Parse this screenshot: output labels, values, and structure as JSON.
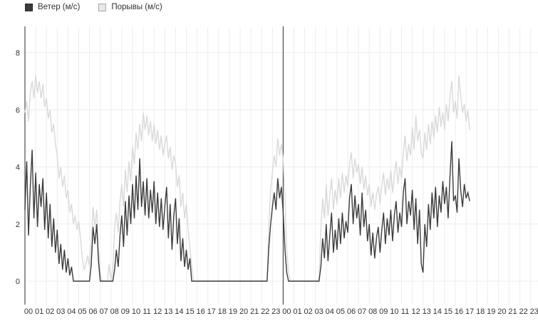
{
  "legend": [
    {
      "label": "Ветер (м/с)",
      "fill": "#3c3c3c",
      "border": "#2a2a2a"
    },
    {
      "label": "Порывы (м/с)",
      "fill": "#e8e8e8",
      "border": "#a8a8a8"
    }
  ],
  "chart_data": {
    "type": "line",
    "title": "",
    "xlabel": "",
    "ylabel": "",
    "x_unit": "hour of day, two consecutive days",
    "x_interval_minutes": 10,
    "x_tick_labels": [
      "00",
      "01",
      "02",
      "03",
      "04",
      "05",
      "06",
      "07",
      "08",
      "09",
      "10",
      "11",
      "12",
      "13",
      "14",
      "15",
      "16",
      "17",
      "18",
      "19",
      "20",
      "21",
      "22",
      "23",
      "00",
      "01",
      "02",
      "03",
      "04",
      "05",
      "06",
      "07",
      "08",
      "09",
      "10",
      "11",
      "12",
      "13",
      "14",
      "15",
      "16",
      "17",
      "18",
      "19",
      "20",
      "21",
      "22",
      "23"
    ],
    "y_ticks": [
      0,
      2,
      4,
      6,
      8
    ],
    "ylim": [
      0,
      9.2
    ],
    "grid": "on",
    "legend_position": "top-left",
    "day_separator_at_hour": 24,
    "colors": {
      "grid": "#ececec",
      "axis": "#4d4d4d",
      "tick_text": "#333333"
    },
    "series": [
      {
        "name": "Ветер (м/с)",
        "color": "#3c3c3c",
        "values": [
          2.5,
          4.2,
          1.6,
          3.3,
          4.6,
          2.2,
          3.8,
          1.9,
          3.4,
          2.6,
          3.6,
          1.8,
          3.1,
          1.5,
          2.7,
          1.2,
          2.2,
          1.0,
          1.8,
          0.6,
          1.3,
          0.4,
          1.1,
          0.3,
          0.8,
          0.2,
          0.5,
          0,
          0,
          0,
          0,
          0,
          0,
          0,
          0,
          0,
          0,
          0.6,
          1.9,
          1.3,
          2.0,
          0.7,
          0,
          0,
          0,
          0,
          0,
          0,
          0,
          0,
          0.4,
          1.1,
          0.5,
          1.6,
          2.3,
          1.2,
          2.8,
          1.6,
          3.0,
          2.0,
          3.4,
          2.2,
          3.7,
          2.5,
          4.3,
          2.6,
          3.5,
          2.3,
          3.6,
          2.2,
          3.2,
          2.4,
          3.5,
          2.0,
          3.1,
          1.9,
          2.9,
          1.8,
          2.6,
          3.3,
          1.5,
          2.7,
          1.1,
          2.3,
          2.9,
          1.3,
          2.2,
          0.7,
          1.5,
          0.5,
          1.1,
          0.4,
          0.8,
          0,
          0,
          0,
          0,
          0,
          0,
          0,
          0,
          0,
          0,
          0,
          0,
          0,
          0,
          0,
          0,
          0,
          0,
          0,
          0,
          0,
          0,
          0,
          0,
          0,
          0,
          0,
          0,
          0,
          0,
          0,
          0,
          0,
          0,
          0,
          0,
          0,
          0,
          0,
          0,
          0,
          0,
          0,
          1.2,
          2.0,
          2.6,
          3.1,
          2.5,
          3.6,
          2.9,
          3.3,
          2.4,
          1.1,
          0.3,
          0,
          0,
          0,
          0,
          0,
          0,
          0,
          0,
          0,
          0,
          0,
          0,
          0,
          0,
          0,
          0,
          0,
          0,
          0.5,
          1.5,
          0.8,
          2.0,
          0.7,
          1.6,
          2.4,
          1.0,
          1.8,
          1.1,
          2.2,
          1.3,
          2.4,
          1.5,
          2.1,
          1.7,
          2.9,
          3.4,
          2.0,
          3.0,
          2.2,
          2.7,
          1.6,
          3.1,
          1.9,
          2.5,
          1.4,
          2.0,
          0.9,
          1.7,
          0.8,
          1.5,
          1.9,
          1.0,
          1.8,
          2.4,
          1.3,
          2.2,
          1.6,
          2.5,
          1.4,
          2.3,
          2.8,
          1.7,
          2.4,
          1.9,
          3.1,
          3.6,
          2.0,
          2.8,
          2.3,
          3.2,
          1.8,
          2.9,
          1.3,
          2.5,
          0.6,
          0.3,
          2.0,
          1.2,
          2.7,
          1.8,
          3.1,
          2.2,
          3.3,
          1.9,
          3.0,
          2.4,
          3.5,
          2.7,
          3.3,
          2.2,
          3.6,
          4.9,
          2.8,
          3.0,
          2.4,
          4.3,
          3.2,
          2.6,
          3.4,
          2.9,
          3.1,
          2.8
        ]
      },
      {
        "name": "Порывы (м/с)",
        "color": "#d9d9d9",
        "values": [
          5.9,
          6.3,
          5.6,
          6.6,
          7.0,
          6.4,
          7.2,
          6.6,
          7.0,
          6.4,
          6.9,
          6.1,
          6.4,
          5.7,
          6.0,
          5.2,
          5.5,
          4.8,
          4.4,
          3.6,
          4.0,
          3.3,
          3.7,
          2.9,
          3.2,
          2.4,
          2.7,
          2.0,
          2.3,
          1.8,
          2.1,
          1.5,
          0.8,
          0.4,
          0.6,
          0.9,
          0.5,
          1.3,
          2.6,
          1.9,
          2.5,
          1.1,
          0.3,
          0,
          0,
          0,
          0,
          0.6,
          0,
          0.4,
          1.9,
          2.4,
          1.7,
          2.8,
          3.4,
          2.6,
          3.9,
          3.1,
          4.2,
          3.5,
          4.7,
          4.1,
          5.2,
          4.6,
          5.5,
          4.9,
          5.9,
          5.3,
          5.8,
          5.1,
          5.6,
          4.9,
          5.5,
          4.8,
          5.3,
          4.6,
          5.1,
          4.4,
          4.8,
          5.1,
          4.3,
          4.7,
          3.9,
          4.4,
          4.1,
          3.3,
          3.7,
          2.6,
          3.1,
          2.2,
          2.7,
          1.8,
          1.2,
          0.5,
          0,
          0,
          0,
          0,
          0,
          0,
          0,
          0,
          0,
          0,
          0,
          0,
          0,
          0,
          0,
          0,
          0,
          0,
          0,
          0,
          0,
          0,
          0,
          0,
          0,
          0,
          0,
          0,
          0,
          0,
          0,
          0,
          0,
          0,
          0,
          0,
          0,
          0,
          0,
          0,
          0,
          0,
          2.0,
          3.2,
          3.8,
          4.4,
          4.0,
          5.0,
          4.4,
          4.8,
          4.3,
          2.9,
          1.1,
          0.3,
          0,
          0,
          0,
          0,
          0,
          0,
          0,
          0,
          0,
          0,
          0,
          0,
          0,
          0,
          0,
          0,
          0,
          1.8,
          2.9,
          2.2,
          3.4,
          2.3,
          3.0,
          3.6,
          2.5,
          3.2,
          2.7,
          3.6,
          2.9,
          3.8,
          3.1,
          3.7,
          3.3,
          4.1,
          4.5,
          3.6,
          4.3,
          3.8,
          4.1,
          3.4,
          4.0,
          3.2,
          3.7,
          3.0,
          3.4,
          2.6,
          3.1,
          2.5,
          3.0,
          3.3,
          2.7,
          3.3,
          3.8,
          3.0,
          3.6,
          3.2,
          3.9,
          3.1,
          3.7,
          4.2,
          3.4,
          4.0,
          3.6,
          4.5,
          5.1,
          4.2,
          4.8,
          4.4,
          5.4,
          4.6,
          5.8,
          4.9,
          5.3,
          4.5,
          4.3,
          5.2,
          4.6,
          5.5,
          4.8,
          5.6,
          5.0,
          5.8,
          5.2,
          6.1,
          5.4,
          5.9,
          5.3,
          6.2,
          5.6,
          6.4,
          7.0,
          5.9,
          6.3,
          5.7,
          7.2,
          6.5,
          5.9,
          6.2,
          5.6,
          6.0,
          5.3
        ]
      }
    ]
  }
}
